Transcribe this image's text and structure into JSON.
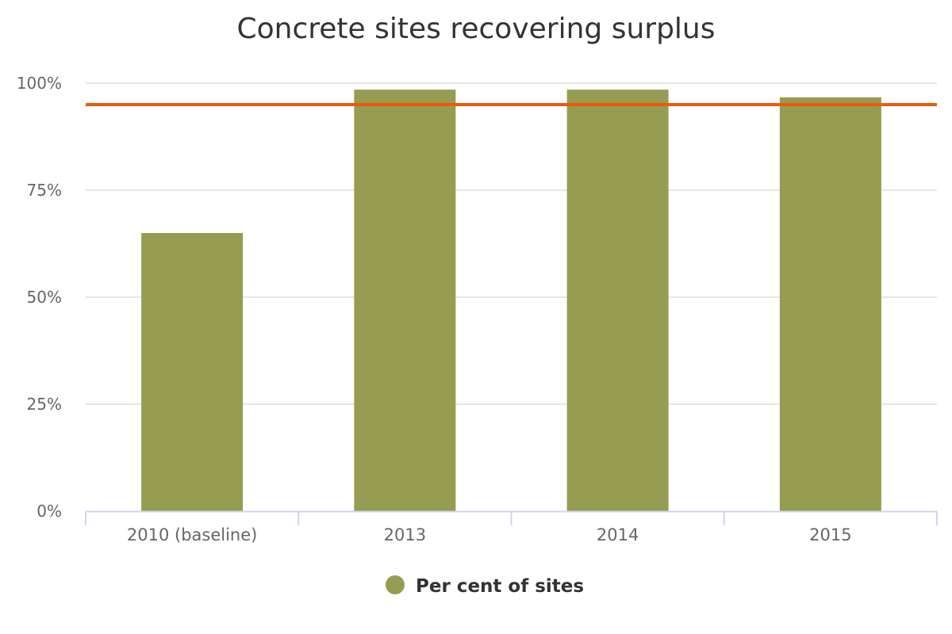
{
  "chart_data": {
    "type": "bar",
    "title": "Concrete sites recovering surplus",
    "xlabel": "",
    "ylabel": "",
    "categories": [
      "2010 (baseline)",
      "2013",
      "2014",
      "2015"
    ],
    "series": [
      {
        "name": "Per cent of sites",
        "values": [
          65,
          98.5,
          98.5,
          96.7
        ],
        "color": "#969c51"
      }
    ],
    "target_line": {
      "value": 95,
      "color": "#ea5a0c"
    },
    "ylim": [
      0,
      100
    ],
    "yticks": [
      {
        "value": 0,
        "label": "0%"
      },
      {
        "value": 25,
        "label": "25%"
      },
      {
        "value": 50,
        "label": "50%"
      },
      {
        "value": 75,
        "label": "75%"
      },
      {
        "value": 100,
        "label": "100%"
      }
    ],
    "grid": true,
    "legend": {
      "position": "bottom-center"
    }
  }
}
